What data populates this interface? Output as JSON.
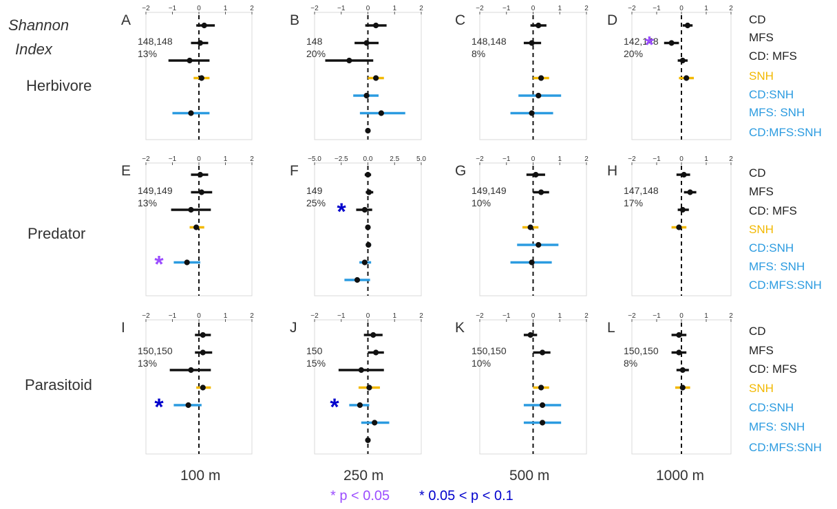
{
  "header": {
    "line1": "Shannon",
    "line2": "Index"
  },
  "rows": [
    "Herbivore",
    "Predator",
    "Parasitoid"
  ],
  "columns": [
    "100 m",
    "250 m",
    "500 m",
    "1000 m"
  ],
  "legend": {
    "sig05": "* p < 0.05",
    "sig10": "* 0.05 < p < 0.1",
    "sig05_color": "#9b4dff",
    "sig10_color": "#0000cc"
  },
  "term_labels": [
    "CD",
    "MFS",
    "CD: MFS",
    "SNH",
    "CD:SNH",
    "MFS: SNH",
    "CD:MFS:SNH"
  ],
  "colors": {
    "black": "#111111",
    "yellow": "#f2b800",
    "blue": "#2b9be0"
  },
  "chart_data": [
    {
      "type": "forest",
      "letter": "A",
      "n": "148,148",
      "pct": "13%",
      "xlim": [
        -2,
        2
      ],
      "ticks": [
        "−2",
        "−1",
        "0",
        "1",
        "2"
      ],
      "tickvals": [
        -2,
        -1,
        0,
        1,
        2
      ],
      "rows": [
        {
          "est": 0.2,
          "lo": -0.1,
          "hi": 0.6,
          "c": "black"
        },
        {
          "est": 0.05,
          "lo": -0.3,
          "hi": 0.35,
          "c": "black"
        },
        {
          "est": -0.35,
          "lo": -1.15,
          "hi": 0.4,
          "c": "black"
        },
        {
          "est": 0.1,
          "lo": -0.2,
          "hi": 0.4,
          "c": "yellow"
        },
        null,
        {
          "est": -0.3,
          "lo": -1.0,
          "hi": 0.4,
          "c": "blue"
        },
        null
      ]
    },
    {
      "type": "forest",
      "letter": "B",
      "n": "148",
      "pct": "20%",
      "xlim": [
        -2,
        2
      ],
      "ticks": [
        "−2",
        "−1",
        "0",
        "1",
        "2"
      ],
      "tickvals": [
        -2,
        -1,
        0,
        1,
        2
      ],
      "rows": [
        {
          "est": 0.3,
          "lo": -0.1,
          "hi": 0.7,
          "c": "black"
        },
        {
          "est": -0.05,
          "lo": -0.5,
          "hi": 0.4,
          "c": "black"
        },
        {
          "est": -0.7,
          "lo": -1.6,
          "hi": 0.2,
          "c": "black"
        },
        {
          "est": 0.3,
          "lo": 0.0,
          "hi": 0.6,
          "c": "yellow"
        },
        {
          "est": -0.05,
          "lo": -0.55,
          "hi": 0.4,
          "c": "blue"
        },
        {
          "est": 0.5,
          "lo": -0.3,
          "hi": 1.4,
          "c": "blue"
        },
        {
          "est": 0.0,
          "lo": 0.0,
          "hi": 0.0,
          "c": "black"
        }
      ]
    },
    {
      "type": "forest",
      "letter": "C",
      "n": "148,148",
      "pct": "8%",
      "xlim": [
        -2,
        2
      ],
      "ticks": [
        "−2",
        "−1",
        "0",
        "1",
        "2"
      ],
      "tickvals": [
        -2,
        -1,
        0,
        1,
        2
      ],
      "rows": [
        {
          "est": 0.2,
          "lo": -0.1,
          "hi": 0.5,
          "c": "black"
        },
        {
          "est": -0.05,
          "lo": -0.35,
          "hi": 0.3,
          "c": "black"
        },
        null,
        {
          "est": 0.3,
          "lo": 0.0,
          "hi": 0.6,
          "c": "yellow"
        },
        {
          "est": 0.2,
          "lo": -0.55,
          "hi": 1.05,
          "c": "blue"
        },
        {
          "est": -0.05,
          "lo": -0.85,
          "hi": 0.75,
          "c": "blue"
        },
        null
      ]
    },
    {
      "type": "forest",
      "letter": "D",
      "n": "142,148",
      "pct": "20%",
      "xlim": [
        -2,
        2
      ],
      "ticks": [
        "−2",
        "−1",
        "0",
        "1",
        "2"
      ],
      "tickvals": [
        -2,
        -1,
        0,
        1,
        2
      ],
      "rows": [
        {
          "est": 0.25,
          "lo": 0.05,
          "hi": 0.45,
          "c": "black"
        },
        {
          "est": -0.4,
          "lo": -0.7,
          "hi": -0.1,
          "c": "black",
          "sig": "05"
        },
        {
          "est": 0.05,
          "lo": -0.15,
          "hi": 0.25,
          "c": "black"
        },
        {
          "est": 0.2,
          "lo": -0.1,
          "hi": 0.5,
          "c": "yellow"
        },
        null,
        null,
        null
      ]
    },
    {
      "type": "forest",
      "letter": "E",
      "n": "149,149",
      "pct": "13%",
      "xlim": [
        -2,
        2
      ],
      "ticks": [
        "−2",
        "−1",
        "0",
        "1",
        "2"
      ],
      "tickvals": [
        -2,
        -1,
        0,
        1,
        2
      ],
      "rows": [
        {
          "est": 0.05,
          "lo": -0.3,
          "hi": 0.35,
          "c": "black"
        },
        {
          "est": 0.1,
          "lo": -0.3,
          "hi": 0.5,
          "c": "black"
        },
        {
          "est": -0.3,
          "lo": -1.05,
          "hi": 0.45,
          "c": "black"
        },
        {
          "est": -0.1,
          "lo": -0.35,
          "hi": 0.2,
          "c": "yellow"
        },
        null,
        {
          "est": -0.45,
          "lo": -0.95,
          "hi": 0.05,
          "c": "blue",
          "sig": "05"
        },
        null
      ]
    },
    {
      "type": "forest",
      "letter": "F",
      "n": "149",
      "pct": "25%",
      "xlim": [
        -5,
        5
      ],
      "ticks": [
        "−5.0",
        "−2.5",
        "0.0",
        "2.5",
        "5.0"
      ],
      "tickvals": [
        -5,
        -2.5,
        0,
        2.5,
        5
      ],
      "rows": [
        {
          "est": 0.0,
          "lo": -0.3,
          "hi": 0.3,
          "c": "black"
        },
        {
          "est": 0.1,
          "lo": -0.2,
          "hi": 0.5,
          "c": "black"
        },
        {
          "est": -0.3,
          "lo": -1.1,
          "hi": 0.4,
          "c": "black",
          "sig": "10"
        },
        {
          "est": 0.0,
          "lo": -0.2,
          "hi": 0.2,
          "c": "yellow"
        },
        {
          "est": 0.05,
          "lo": -0.2,
          "hi": 0.3,
          "c": "blue"
        },
        {
          "est": -0.3,
          "lo": -0.8,
          "hi": 0.3,
          "c": "blue"
        },
        {
          "est": -1.0,
          "lo": -2.2,
          "hi": 0.2,
          "c": "blue"
        }
      ]
    },
    {
      "type": "forest",
      "letter": "G",
      "n": "149,149",
      "pct": "10%",
      "xlim": [
        -2,
        2
      ],
      "ticks": [
        "−2",
        "−1",
        "0",
        "1",
        "2"
      ],
      "tickvals": [
        -2,
        -1,
        0,
        1,
        2
      ],
      "rows": [
        {
          "est": 0.1,
          "lo": -0.25,
          "hi": 0.45,
          "c": "black"
        },
        {
          "est": 0.3,
          "lo": 0.0,
          "hi": 0.6,
          "c": "black"
        },
        null,
        {
          "est": -0.1,
          "lo": -0.4,
          "hi": 0.2,
          "c": "yellow"
        },
        {
          "est": 0.2,
          "lo": -0.6,
          "hi": 0.95,
          "c": "blue"
        },
        {
          "est": -0.05,
          "lo": -0.85,
          "hi": 0.7,
          "c": "blue"
        },
        null
      ]
    },
    {
      "type": "forest",
      "letter": "H",
      "n": "147,148",
      "pct": "17%",
      "xlim": [
        -2,
        2
      ],
      "ticks": [
        "−2",
        "−1",
        "0",
        "1",
        "2"
      ],
      "tickvals": [
        -2,
        -1,
        0,
        1,
        2
      ],
      "rows": [
        {
          "est": 0.1,
          "lo": -0.2,
          "hi": 0.35,
          "c": "black"
        },
        {
          "est": 0.35,
          "lo": 0.1,
          "hi": 0.6,
          "c": "black"
        },
        {
          "est": 0.05,
          "lo": -0.15,
          "hi": 0.3,
          "c": "black"
        },
        {
          "est": -0.1,
          "lo": -0.4,
          "hi": 0.2,
          "c": "yellow"
        },
        null,
        null,
        null
      ]
    },
    {
      "type": "forest",
      "letter": "I",
      "n": "150,150",
      "pct": "13%",
      "xlim": [
        -2,
        2
      ],
      "ticks": [
        "−2",
        "−1",
        "0",
        "1",
        "2"
      ],
      "tickvals": [
        -2,
        -1,
        0,
        1,
        2
      ],
      "rows": [
        {
          "est": 0.15,
          "lo": -0.15,
          "hi": 0.45,
          "c": "black"
        },
        {
          "est": 0.15,
          "lo": -0.15,
          "hi": 0.5,
          "c": "black"
        },
        {
          "est": -0.3,
          "lo": -1.1,
          "hi": 0.45,
          "c": "black"
        },
        {
          "est": 0.15,
          "lo": -0.1,
          "hi": 0.45,
          "c": "yellow"
        },
        {
          "est": -0.4,
          "lo": -0.95,
          "hi": 0.1,
          "c": "blue",
          "sig": "10"
        },
        null,
        null
      ]
    },
    {
      "type": "forest",
      "letter": "J",
      "n": "150",
      "pct": "15%",
      "xlim": [
        -2,
        2
      ],
      "ticks": [
        "−2",
        "−1",
        "0",
        "1",
        "2"
      ],
      "tickvals": [
        -2,
        -1,
        0,
        1,
        2
      ],
      "rows": [
        {
          "est": 0.2,
          "lo": -0.15,
          "hi": 0.55,
          "c": "black"
        },
        {
          "est": 0.3,
          "lo": 0.0,
          "hi": 0.6,
          "c": "black"
        },
        {
          "est": -0.25,
          "lo": -1.1,
          "hi": 0.6,
          "c": "black"
        },
        {
          "est": 0.05,
          "lo": -0.35,
          "hi": 0.45,
          "c": "yellow"
        },
        {
          "est": -0.3,
          "lo": -0.7,
          "hi": 0.05,
          "c": "blue",
          "sig": "10"
        },
        {
          "est": 0.25,
          "lo": -0.25,
          "hi": 0.8,
          "c": "blue"
        },
        {
          "est": 0.0,
          "lo": 0.0,
          "hi": 0.0,
          "c": "black"
        }
      ]
    },
    {
      "type": "forest",
      "letter": "K",
      "n": "150,150",
      "pct": "10%",
      "xlim": [
        -2,
        2
      ],
      "ticks": [
        "−2",
        "−1",
        "0",
        "1",
        "2"
      ],
      "tickvals": [
        -2,
        -1,
        0,
        1,
        2
      ],
      "rows": [
        {
          "est": -0.1,
          "lo": -0.35,
          "hi": 0.15,
          "c": "black"
        },
        {
          "est": 0.35,
          "lo": 0.0,
          "hi": 0.65,
          "c": "black"
        },
        null,
        {
          "est": 0.3,
          "lo": 0.0,
          "hi": 0.6,
          "c": "yellow"
        },
        {
          "est": 0.35,
          "lo": -0.35,
          "hi": 1.05,
          "c": "blue"
        },
        {
          "est": 0.35,
          "lo": -0.35,
          "hi": 1.05,
          "c": "blue"
        },
        null
      ]
    },
    {
      "type": "forest",
      "letter": "L",
      "n": "150,150",
      "pct": "8%",
      "xlim": [
        -2,
        2
      ],
      "ticks": [
        "−2",
        "−1",
        "0",
        "1",
        "2"
      ],
      "tickvals": [
        -2,
        -1,
        0,
        1,
        2
      ],
      "rows": [
        {
          "est": -0.1,
          "lo": -0.4,
          "hi": 0.2,
          "c": "black"
        },
        {
          "est": -0.1,
          "lo": -0.4,
          "hi": 0.2,
          "c": "black"
        },
        {
          "est": 0.05,
          "lo": -0.2,
          "hi": 0.3,
          "c": "black"
        },
        {
          "est": 0.05,
          "lo": -0.25,
          "hi": 0.35,
          "c": "yellow"
        },
        null,
        null,
        null
      ]
    }
  ]
}
